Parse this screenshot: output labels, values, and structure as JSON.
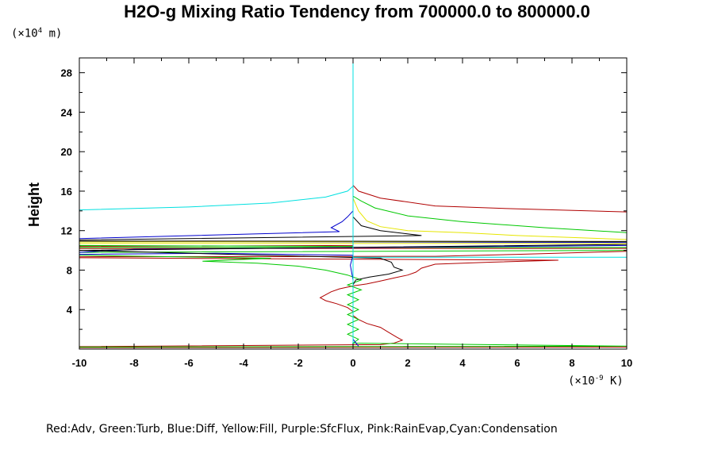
{
  "chart_data": {
    "type": "line",
    "title": "H2O-g Mixing Ratio Tendency from 700000.0 to 800000.0",
    "ylabel": "Height",
    "yunit_base": "(×10",
    "yunit_exp": "4",
    "yunit_tail": " m)",
    "xunit_base": "(×10",
    "xunit_exp": "-9",
    "xunit_tail": " K)",
    "xlim": [
      -10,
      10
    ],
    "ylim": [
      0,
      29.5
    ],
    "xticks": [
      -10,
      -8,
      -6,
      -4,
      -2,
      0,
      2,
      4,
      6,
      8,
      10
    ],
    "yticks": [
      4,
      8,
      12,
      16,
      20,
      24,
      28
    ],
    "legend_text": "Red:Adv, Green:Turb, Blue:Diff, Yellow:Fill, Purple:SfcFlux, Pink:RainEvap,Cyan:Condensation",
    "series": [
      {
        "color": "#b00000",
        "points": [
          [
            10,
            13.9
          ],
          [
            6,
            14.2
          ],
          [
            3,
            14.5
          ],
          [
            1,
            15.3
          ],
          [
            0.2,
            16.0
          ],
          [
            0,
            16.6
          ],
          [
            0,
            10.5
          ],
          [
            -10,
            10.4
          ],
          [
            -10,
            10.2
          ],
          [
            10,
            10.2
          ],
          [
            10,
            9.9
          ],
          [
            6,
            9.6
          ],
          [
            3,
            9.4
          ],
          [
            -10,
            9.35
          ],
          [
            -10,
            9.25
          ],
          [
            7.5,
            9.0
          ],
          [
            5,
            8.8
          ],
          [
            3,
            8.6
          ],
          [
            2.5,
            8.2
          ],
          [
            2.3,
            7.8
          ],
          [
            2,
            7.5
          ],
          [
            1.5,
            7.2
          ],
          [
            1,
            6.9
          ],
          [
            0.5,
            6.6
          ],
          [
            0,
            6.4
          ],
          [
            -0.5,
            6.1
          ],
          [
            -0.8,
            5.8
          ],
          [
            -1,
            5.5
          ],
          [
            -1.2,
            5.2
          ],
          [
            -1,
            4.9
          ],
          [
            -0.6,
            4.6
          ],
          [
            -0.2,
            4.2
          ],
          [
            0,
            3.8
          ],
          [
            0,
            3.4
          ],
          [
            0.2,
            3.0
          ],
          [
            0.5,
            2.6
          ],
          [
            1,
            2.2
          ],
          [
            1.3,
            1.7
          ],
          [
            1.6,
            1.2
          ],
          [
            1.8,
            0.9
          ],
          [
            1.5,
            0.6
          ],
          [
            1,
            0.45
          ],
          [
            -10,
            0.25
          ],
          [
            -10,
            0.15
          ],
          [
            10,
            0.2
          ]
        ]
      },
      {
        "color": "#00c800",
        "points": [
          [
            10,
            11.8
          ],
          [
            7,
            12.3
          ],
          [
            4,
            12.9
          ],
          [
            2,
            13.5
          ],
          [
            0.8,
            14.3
          ],
          [
            0.3,
            15.0
          ],
          [
            0,
            15.5
          ],
          [
            0,
            10.4
          ],
          [
            -10,
            10.5
          ],
          [
            -10,
            10.3
          ],
          [
            10,
            10.3
          ],
          [
            10,
            10.0
          ],
          [
            -10,
            9.8
          ],
          [
            -10,
            9.5
          ],
          [
            -3,
            9.2
          ],
          [
            -5.5,
            8.9
          ],
          [
            -3.5,
            8.7
          ],
          [
            -2,
            8.4
          ],
          [
            -1,
            8.0
          ],
          [
            -0.2,
            7.5
          ],
          [
            0.3,
            7.0
          ],
          [
            -0.2,
            6.5
          ],
          [
            0.3,
            6.0
          ],
          [
            -0.2,
            5.5
          ],
          [
            0.2,
            5.0
          ],
          [
            -0.2,
            4.5
          ],
          [
            0.2,
            4.0
          ],
          [
            -0.2,
            3.5
          ],
          [
            0.2,
            3.0
          ],
          [
            -0.2,
            2.5
          ],
          [
            0.2,
            2.0
          ],
          [
            -0.2,
            1.5
          ],
          [
            0.2,
            1.0
          ],
          [
            0,
            0.6
          ],
          [
            10,
            0.3
          ],
          [
            -10,
            0.2
          ]
        ]
      },
      {
        "color": "#0000cc",
        "points": [
          [
            0,
            14.0
          ],
          [
            -0.2,
            13.4
          ],
          [
            -0.4,
            12.9
          ],
          [
            -0.8,
            12.3
          ],
          [
            -0.5,
            11.9
          ],
          [
            -10,
            11.2
          ],
          [
            -10,
            10.9
          ],
          [
            10,
            10.8
          ],
          [
            10,
            10.5
          ],
          [
            -8,
            10.1
          ],
          [
            -10,
            9.8
          ],
          [
            -10,
            9.6
          ],
          [
            -5,
            9.7
          ],
          [
            0,
            9.5
          ],
          [
            -0.1,
            8.5
          ],
          [
            0,
            7.0
          ],
          [
            0,
            1.0
          ],
          [
            0.2,
            0.3
          ]
        ]
      },
      {
        "color": "#e6e600",
        "points": [
          [
            0,
            15.3
          ],
          [
            0.2,
            14.0
          ],
          [
            0.5,
            13.0
          ],
          [
            1,
            12.4
          ],
          [
            2,
            12.0
          ],
          [
            4,
            11.8
          ],
          [
            6,
            11.5
          ],
          [
            10,
            11.1
          ],
          [
            10,
            10.9
          ],
          [
            -10,
            10.85
          ],
          [
            -10,
            10.7
          ],
          [
            10,
            10.7
          ]
        ]
      },
      {
        "color": "#000000",
        "points": [
          [
            0,
            13.4
          ],
          [
            0.3,
            12.5
          ],
          [
            1,
            12.0
          ],
          [
            2.5,
            11.5
          ],
          [
            -10,
            11.05
          ],
          [
            -10,
            10.95
          ],
          [
            10,
            10.9
          ],
          [
            10,
            10.6
          ],
          [
            -10,
            10.0
          ],
          [
            1,
            9.2
          ],
          [
            1.4,
            8.8
          ],
          [
            1.5,
            8.3
          ],
          [
            1.8,
            8.0
          ],
          [
            1.3,
            7.6
          ],
          [
            0.6,
            7.3
          ],
          [
            0.1,
            7.0
          ],
          [
            0,
            6.5
          ]
        ]
      },
      {
        "color": "#00e0e0",
        "points": [
          [
            -10,
            14.1
          ],
          [
            -6,
            14.4
          ],
          [
            -3,
            14.8
          ],
          [
            -1,
            15.4
          ],
          [
            -0.2,
            16.0
          ],
          [
            0,
            16.5
          ],
          [
            0,
            29.5
          ],
          [
            0,
            16.5
          ],
          [
            0,
            9.3
          ],
          [
            10,
            9.3
          ],
          [
            0,
            9.3
          ],
          [
            0,
            0
          ]
        ]
      }
    ]
  }
}
